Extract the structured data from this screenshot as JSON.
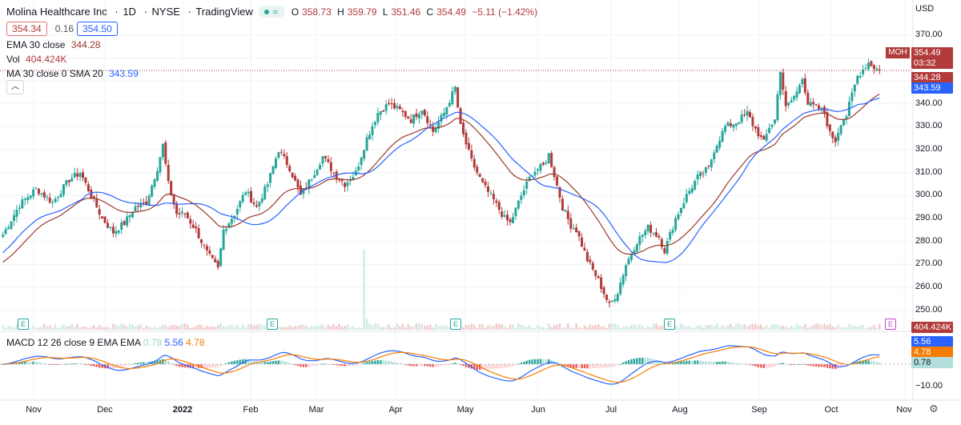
{
  "header": {
    "title": "Molina Healthcare Inc",
    "interval": "1D",
    "exchange": "NYSE",
    "source": "TradingView",
    "status_glyph": "≈",
    "ohlc": {
      "o_label": "O",
      "o": "358.73",
      "h_label": "H",
      "h": "359.79",
      "l_label": "L",
      "l": "351.46",
      "c_label": "C",
      "c": "354.49",
      "change": "−5.11 (−1.42%)"
    }
  },
  "quote": {
    "bid": "354.34",
    "spread": "0.16",
    "ask": "354.50"
  },
  "indicators": {
    "ema": {
      "label": "EMA 30 close",
      "value": "344.28"
    },
    "vol": {
      "label": "Vol",
      "value": "404.424K"
    },
    "ma": {
      "label": "MA 30 close 0 SMA 20",
      "value": "343.59"
    },
    "macd": {
      "label": "MACD 12 26 close 9 EMA EMA",
      "v1": "0.78",
      "v2": "5.56",
      "v3": "4.78"
    }
  },
  "price_axis": {
    "currency": "USD",
    "ticks": [
      "370.00",
      "360.00",
      "350.00",
      "340.00",
      "330.00",
      "320.00",
      "310.00",
      "300.00",
      "290.00",
      "280.00",
      "270.00",
      "260.00",
      "250.00"
    ],
    "tags": {
      "symbol": "MOH",
      "last": "354.49",
      "countdown": "03:32",
      "ema": "344.28",
      "ma": "343.59",
      "vol": "404.424K"
    }
  },
  "macd_axis": {
    "tags": {
      "macd": "5.56",
      "signal": "4.78",
      "hist": "0.78"
    },
    "tick": "−10.00"
  },
  "time_axis": {
    "labels": [
      "Nov",
      "Dec",
      "2022",
      "Feb",
      "Mar",
      "Apr",
      "May",
      "Jun",
      "Jul",
      "Aug",
      "Sep",
      "Oct",
      "Nov"
    ],
    "bold_label": "2022"
  },
  "earnings_marker": "E",
  "colors": {
    "up": "#26a69a",
    "down": "#b23a3a",
    "ema": "#9b3a2a",
    "ma": "#2962ff",
    "macd": "#2962ff",
    "signal": "#f57c00",
    "grid": "#f0f3fa"
  },
  "icons": {
    "settings": "gear-icon",
    "collapse": "chevron-up-icon"
  },
  "chart_data": {
    "type": "candlestick",
    "ylim": [
      245,
      372
    ],
    "keyframes": [
      [
        0,
        283
      ],
      [
        6,
        296
      ],
      [
        12,
        303
      ],
      [
        18,
        297
      ],
      [
        24,
        307
      ],
      [
        28,
        310
      ],
      [
        32,
        300
      ],
      [
        36,
        290
      ],
      [
        40,
        284
      ],
      [
        44,
        288
      ],
      [
        48,
        295
      ],
      [
        52,
        297
      ],
      [
        56,
        312
      ],
      [
        58,
        322
      ],
      [
        60,
        305
      ],
      [
        63,
        292
      ],
      [
        66,
        292
      ],
      [
        70,
        285
      ],
      [
        74,
        275
      ],
      [
        78,
        268
      ],
      [
        80,
        285
      ],
      [
        84,
        292
      ],
      [
        88,
        302
      ],
      [
        92,
        295
      ],
      [
        96,
        305
      ],
      [
        100,
        320
      ],
      [
        104,
        312
      ],
      [
        108,
        300
      ],
      [
        112,
        308
      ],
      [
        116,
        317
      ],
      [
        120,
        310
      ],
      [
        124,
        305
      ],
      [
        128,
        310
      ],
      [
        132,
        325
      ],
      [
        136,
        336
      ],
      [
        140,
        340
      ],
      [
        144,
        337
      ],
      [
        148,
        333
      ],
      [
        152,
        338
      ],
      [
        154,
        333
      ],
      [
        156,
        328
      ],
      [
        160,
        336
      ],
      [
        164,
        347
      ],
      [
        166,
        330
      ],
      [
        170,
        315
      ],
      [
        174,
        305
      ],
      [
        178,
        298
      ],
      [
        182,
        290
      ],
      [
        184,
        288
      ],
      [
        188,
        300
      ],
      [
        192,
        310
      ],
      [
        196,
        313
      ],
      [
        198,
        318
      ],
      [
        200,
        309
      ],
      [
        203,
        295
      ],
      [
        206,
        287
      ],
      [
        208,
        285
      ],
      [
        212,
        272
      ],
      [
        216,
        263
      ],
      [
        220,
        252
      ],
      [
        223,
        258
      ],
      [
        226,
        270
      ],
      [
        230,
        280
      ],
      [
        234,
        286
      ],
      [
        238,
        282
      ],
      [
        240,
        276
      ],
      [
        244,
        290
      ],
      [
        248,
        300
      ],
      [
        252,
        308
      ],
      [
        256,
        312
      ],
      [
        258,
        320
      ],
      [
        262,
        330
      ],
      [
        266,
        332
      ],
      [
        270,
        336
      ],
      [
        272,
        331
      ],
      [
        276,
        323
      ],
      [
        278,
        330
      ],
      [
        280,
        333
      ],
      [
        282,
        355
      ],
      [
        284,
        338
      ],
      [
        288,
        345
      ],
      [
        290,
        352
      ],
      [
        292,
        340
      ],
      [
        296,
        338
      ],
      [
        298,
        336
      ],
      [
        300,
        327
      ],
      [
        302,
        324
      ],
      [
        304,
        332
      ],
      [
        306,
        335
      ],
      [
        308,
        344
      ],
      [
        310,
        352
      ],
      [
        312,
        355
      ],
      [
        314,
        358
      ],
      [
        316,
        356
      ],
      [
        318,
        354.49
      ]
    ],
    "last_close": 354.49
  }
}
